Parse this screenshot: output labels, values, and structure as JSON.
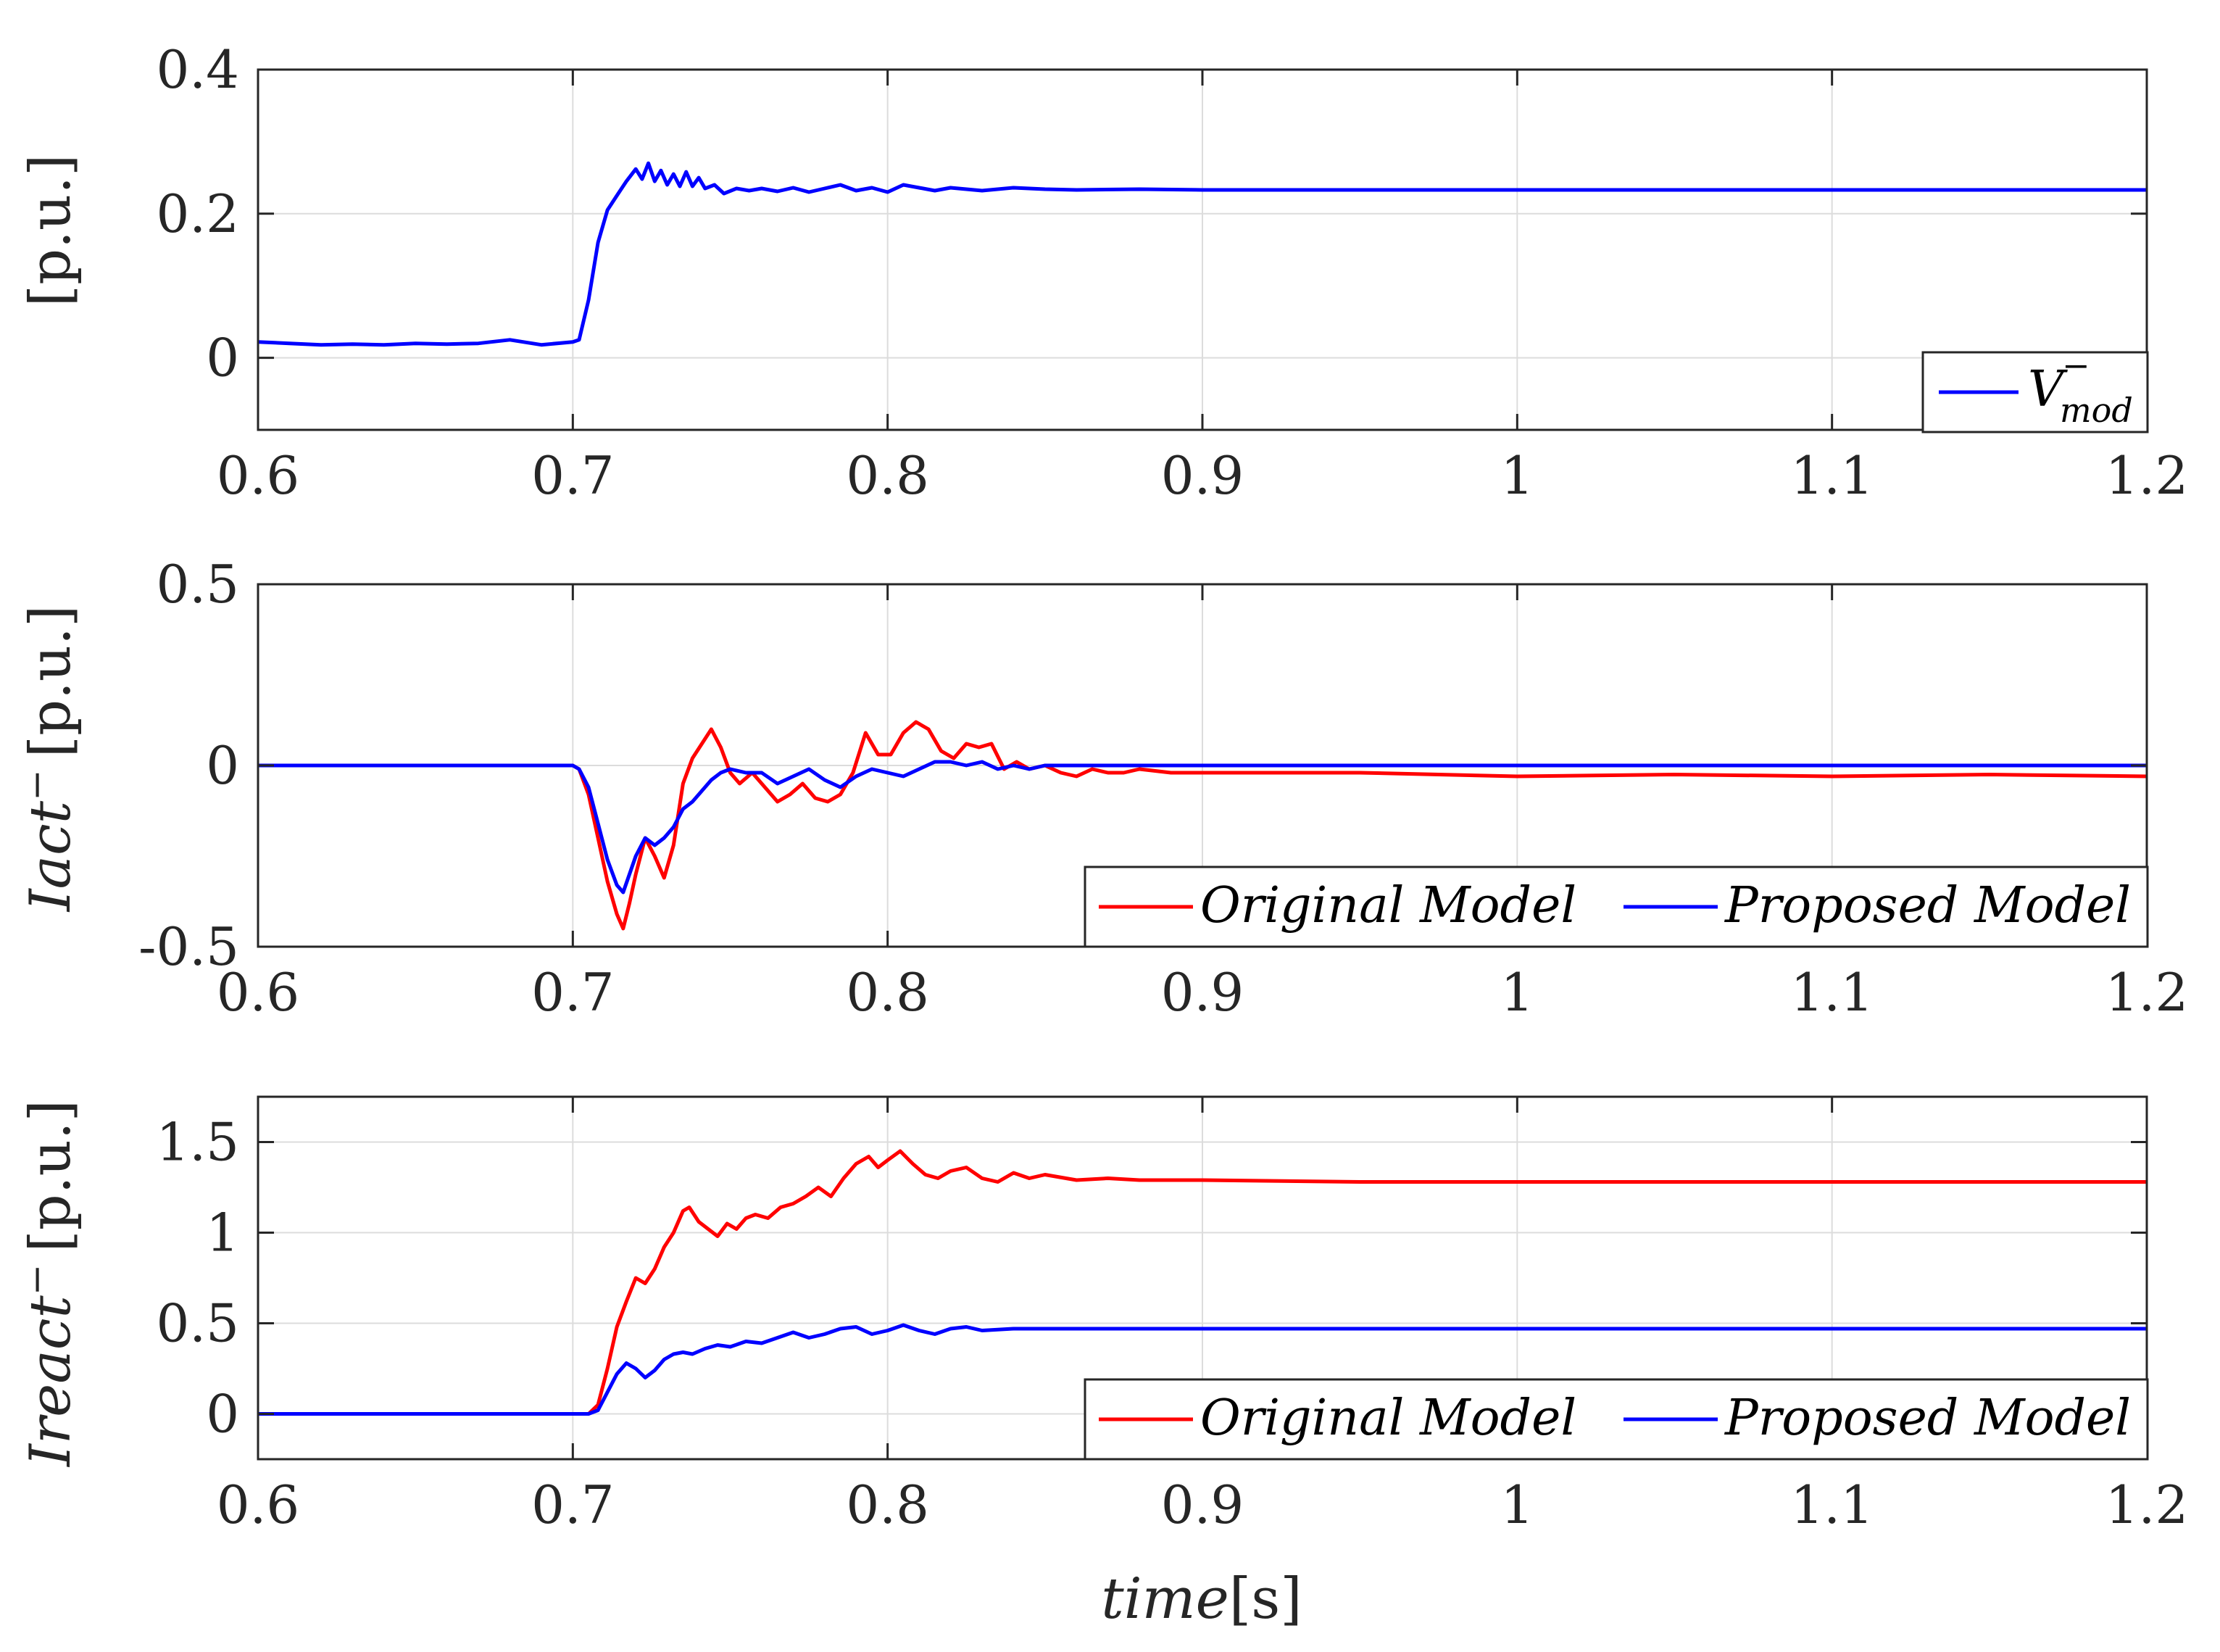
{
  "colors": {
    "red": "#ff0000",
    "blue": "#0000ff"
  },
  "chart_data": [
    {
      "type": "line",
      "id": "p1",
      "xlabel": "",
      "ylabel": "[p.u.]",
      "xlim": [
        0.6,
        1.2
      ],
      "ylim": [
        -0.1,
        0.4
      ],
      "xticks": [
        0.6,
        0.7,
        0.8,
        0.9,
        1.0,
        1.1,
        1.2
      ],
      "xtick_labels": [
        "0.6",
        "0.7",
        "0.8",
        "0.9",
        "1",
        "1.1",
        "1.2"
      ],
      "yticks": [
        0,
        0.2,
        0.4
      ],
      "ytick_labels": [
        "0",
        "0.2",
        "0.4"
      ],
      "grid": true,
      "legend_position": "bottom-right",
      "series": [
        {
          "name": "V_mod^-",
          "label": "V",
          "label_sup": "−",
          "label_sub": "mod",
          "color": "#0000ff",
          "x": [
            0.6,
            0.61,
            0.62,
            0.63,
            0.64,
            0.65,
            0.66,
            0.67,
            0.68,
            0.69,
            0.7,
            0.702,
            0.705,
            0.708,
            0.711,
            0.714,
            0.717,
            0.72,
            0.722,
            0.724,
            0.726,
            0.728,
            0.73,
            0.732,
            0.734,
            0.736,
            0.738,
            0.74,
            0.742,
            0.745,
            0.748,
            0.752,
            0.756,
            0.76,
            0.765,
            0.77,
            0.775,
            0.78,
            0.785,
            0.79,
            0.795,
            0.8,
            0.805,
            0.81,
            0.815,
            0.82,
            0.83,
            0.84,
            0.85,
            0.86,
            0.88,
            0.9,
            0.95,
            1.0,
            1.05,
            1.1,
            1.15,
            1.2
          ],
          "y": [
            0.022,
            0.02,
            0.018,
            0.019,
            0.018,
            0.02,
            0.019,
            0.02,
            0.025,
            0.018,
            0.022,
            0.025,
            0.08,
            0.16,
            0.205,
            0.225,
            0.245,
            0.262,
            0.248,
            0.27,
            0.245,
            0.26,
            0.24,
            0.255,
            0.238,
            0.258,
            0.238,
            0.25,
            0.235,
            0.24,
            0.228,
            0.235,
            0.232,
            0.235,
            0.231,
            0.236,
            0.23,
            0.235,
            0.24,
            0.232,
            0.236,
            0.23,
            0.24,
            0.236,
            0.232,
            0.236,
            0.232,
            0.236,
            0.234,
            0.233,
            0.234,
            0.233,
            0.233,
            0.233,
            0.233,
            0.233,
            0.233,
            0.233
          ]
        }
      ]
    },
    {
      "type": "line",
      "id": "p2",
      "xlabel": "",
      "ylabel": "Iact⁻ [p.u.]",
      "ylabel_italic": "Iact",
      "ylabel_sup": "−",
      "ylabel_unit": "[p.u.]",
      "xlim": [
        0.6,
        1.2
      ],
      "ylim": [
        -0.5,
        0.5
      ],
      "xticks": [
        0.6,
        0.7,
        0.8,
        0.9,
        1.0,
        1.1,
        1.2
      ],
      "xtick_labels": [
        "0.6",
        "0.7",
        "0.8",
        "0.9",
        "1",
        "1.1",
        "1.2"
      ],
      "yticks": [
        -0.5,
        0,
        0.5
      ],
      "ytick_labels": [
        "-0.5",
        "0",
        "0.5"
      ],
      "grid": true,
      "legend_position": "bottom-right",
      "series": [
        {
          "name": "Original Model",
          "color": "#ff0000",
          "x": [
            0.6,
            0.65,
            0.7,
            0.702,
            0.705,
            0.708,
            0.711,
            0.714,
            0.716,
            0.718,
            0.72,
            0.723,
            0.726,
            0.729,
            0.732,
            0.735,
            0.738,
            0.741,
            0.744,
            0.747,
            0.75,
            0.753,
            0.757,
            0.761,
            0.765,
            0.769,
            0.773,
            0.777,
            0.781,
            0.785,
            0.789,
            0.793,
            0.797,
            0.801,
            0.805,
            0.809,
            0.813,
            0.817,
            0.821,
            0.825,
            0.829,
            0.833,
            0.837,
            0.841,
            0.845,
            0.85,
            0.855,
            0.86,
            0.865,
            0.87,
            0.875,
            0.88,
            0.89,
            0.9,
            0.95,
            1.0,
            1.05,
            1.1,
            1.15,
            1.2
          ],
          "y": [
            0,
            0,
            0,
            -0.01,
            -0.08,
            -0.2,
            -0.32,
            -0.41,
            -0.45,
            -0.38,
            -0.3,
            -0.2,
            -0.25,
            -0.31,
            -0.22,
            -0.05,
            0.02,
            0.06,
            0.1,
            0.05,
            -0.02,
            -0.05,
            -0.02,
            -0.06,
            -0.1,
            -0.08,
            -0.05,
            -0.09,
            -0.1,
            -0.08,
            -0.02,
            0.09,
            0.03,
            0.03,
            0.09,
            0.12,
            0.1,
            0.04,
            0.02,
            0.06,
            0.05,
            0.06,
            -0.01,
            0.01,
            -0.01,
            0.0,
            -0.02,
            -0.03,
            -0.01,
            -0.02,
            -0.02,
            -0.01,
            -0.02,
            -0.02,
            -0.02,
            -0.03,
            -0.025,
            -0.03,
            -0.025,
            -0.03
          ]
        },
        {
          "name": "Proposed Model",
          "color": "#0000ff",
          "x": [
            0.6,
            0.65,
            0.7,
            0.702,
            0.705,
            0.708,
            0.711,
            0.714,
            0.716,
            0.718,
            0.72,
            0.723,
            0.726,
            0.729,
            0.732,
            0.735,
            0.738,
            0.741,
            0.744,
            0.747,
            0.75,
            0.755,
            0.76,
            0.765,
            0.77,
            0.775,
            0.78,
            0.785,
            0.79,
            0.795,
            0.8,
            0.805,
            0.81,
            0.815,
            0.82,
            0.825,
            0.83,
            0.835,
            0.84,
            0.845,
            0.85,
            0.86,
            0.87,
            0.9,
            0.95,
            1.0,
            1.05,
            1.1,
            1.15,
            1.2
          ],
          "y": [
            0,
            0,
            0,
            -0.01,
            -0.06,
            -0.16,
            -0.26,
            -0.33,
            -0.35,
            -0.3,
            -0.25,
            -0.2,
            -0.22,
            -0.2,
            -0.17,
            -0.12,
            -0.1,
            -0.07,
            -0.04,
            -0.02,
            -0.01,
            -0.02,
            -0.02,
            -0.05,
            -0.03,
            -0.01,
            -0.04,
            -0.06,
            -0.03,
            -0.01,
            -0.02,
            -0.03,
            -0.01,
            0.01,
            0.01,
            0.0,
            0.01,
            -0.01,
            0.0,
            -0.01,
            0.0,
            0.0,
            0.0,
            0.0,
            0.0,
            0.0,
            0.0,
            0.0,
            0.0,
            0.0
          ]
        }
      ]
    },
    {
      "type": "line",
      "id": "p3",
      "xlabel": "time[s]",
      "xlabel_italic": "time",
      "xlabel_unit": "[s]",
      "ylabel": "Ireact⁻ [p.u.]",
      "ylabel_italic": "Ireact",
      "ylabel_sup": "−",
      "ylabel_unit": "[p.u.]",
      "xlim": [
        0.6,
        1.2
      ],
      "ylim": [
        -0.25,
        1.75
      ],
      "xticks": [
        0.6,
        0.7,
        0.8,
        0.9,
        1.0,
        1.1,
        1.2
      ],
      "xtick_labels": [
        "0.6",
        "0.7",
        "0.8",
        "0.9",
        "1",
        "1.1",
        "1.2"
      ],
      "yticks": [
        0,
        0.5,
        1,
        1.5
      ],
      "ytick_labels": [
        "0",
        "0.5",
        "1",
        "1.5"
      ],
      "grid": true,
      "legend_position": "bottom-right",
      "series": [
        {
          "name": "Original Model",
          "color": "#ff0000",
          "x": [
            0.6,
            0.65,
            0.7,
            0.705,
            0.708,
            0.711,
            0.714,
            0.717,
            0.72,
            0.723,
            0.726,
            0.729,
            0.732,
            0.735,
            0.737,
            0.74,
            0.743,
            0.746,
            0.749,
            0.752,
            0.755,
            0.758,
            0.762,
            0.766,
            0.77,
            0.774,
            0.778,
            0.782,
            0.786,
            0.79,
            0.794,
            0.797,
            0.8,
            0.804,
            0.808,
            0.812,
            0.816,
            0.82,
            0.825,
            0.83,
            0.835,
            0.84,
            0.845,
            0.85,
            0.86,
            0.87,
            0.88,
            0.9,
            0.95,
            1.0,
            1.05,
            1.1,
            1.15,
            1.2
          ],
          "y": [
            0,
            0,
            0,
            0.0,
            0.05,
            0.25,
            0.48,
            0.62,
            0.75,
            0.72,
            0.8,
            0.92,
            1.0,
            1.12,
            1.14,
            1.06,
            1.02,
            0.98,
            1.05,
            1.02,
            1.08,
            1.1,
            1.08,
            1.14,
            1.16,
            1.2,
            1.25,
            1.2,
            1.3,
            1.38,
            1.42,
            1.36,
            1.4,
            1.45,
            1.38,
            1.32,
            1.3,
            1.34,
            1.36,
            1.3,
            1.28,
            1.33,
            1.3,
            1.32,
            1.29,
            1.3,
            1.29,
            1.29,
            1.28,
            1.28,
            1.28,
            1.28,
            1.28,
            1.28
          ]
        },
        {
          "name": "Proposed Model",
          "color": "#0000ff",
          "x": [
            0.6,
            0.65,
            0.7,
            0.705,
            0.708,
            0.711,
            0.714,
            0.717,
            0.72,
            0.723,
            0.726,
            0.729,
            0.732,
            0.735,
            0.738,
            0.742,
            0.746,
            0.75,
            0.755,
            0.76,
            0.765,
            0.77,
            0.775,
            0.78,
            0.785,
            0.79,
            0.795,
            0.8,
            0.805,
            0.81,
            0.815,
            0.82,
            0.825,
            0.83,
            0.84,
            0.85,
            0.86,
            0.88,
            0.9,
            0.95,
            1.0,
            1.05,
            1.1,
            1.15,
            1.2
          ],
          "y": [
            0,
            0,
            0,
            0.0,
            0.02,
            0.12,
            0.22,
            0.28,
            0.25,
            0.2,
            0.24,
            0.3,
            0.33,
            0.34,
            0.33,
            0.36,
            0.38,
            0.37,
            0.4,
            0.39,
            0.42,
            0.45,
            0.42,
            0.44,
            0.47,
            0.48,
            0.44,
            0.46,
            0.49,
            0.46,
            0.44,
            0.47,
            0.48,
            0.46,
            0.47,
            0.47,
            0.47,
            0.47,
            0.47,
            0.47,
            0.47,
            0.47,
            0.47,
            0.47,
            0.47
          ]
        }
      ]
    }
  ]
}
